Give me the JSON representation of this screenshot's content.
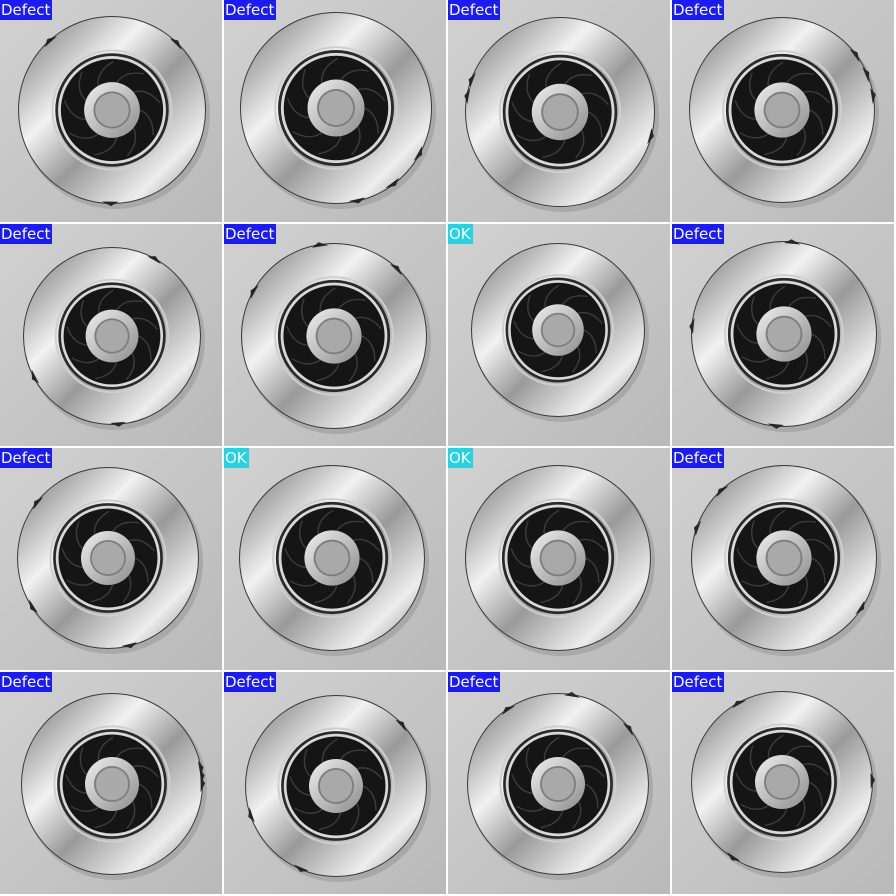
{
  "grid": {
    "rows": 4,
    "cols": 4,
    "label_colors": {
      "Defect": "#1a1aff",
      "OK": "#22d3e6"
    },
    "tiles": [
      {
        "label": "Defect"
      },
      {
        "label": "Defect"
      },
      {
        "label": "Defect"
      },
      {
        "label": "Defect"
      },
      {
        "label": "Defect"
      },
      {
        "label": "Defect"
      },
      {
        "label": "OK"
      },
      {
        "label": "Defect"
      },
      {
        "label": "Defect"
      },
      {
        "label": "OK"
      },
      {
        "label": "OK"
      },
      {
        "label": "Defect"
      },
      {
        "label": "Defect"
      },
      {
        "label": "Defect"
      },
      {
        "label": "Defect"
      },
      {
        "label": "Defect"
      }
    ]
  }
}
